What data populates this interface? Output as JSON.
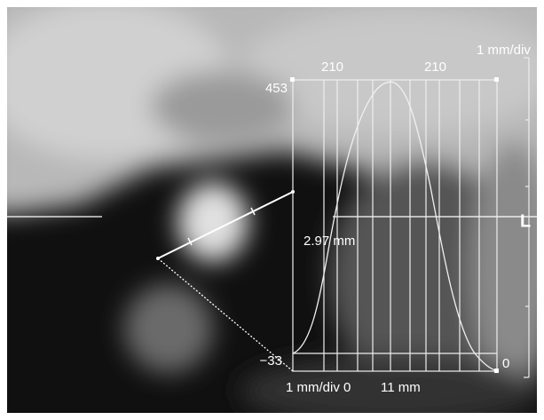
{
  "overlay": {
    "scale_top_right": "1 mm/div",
    "top_label_left": "210",
    "top_label_right": "210",
    "max_label": "453",
    "min_label": "−33",
    "right_zero": "0",
    "bottom_left": "1 mm/div 0",
    "bottom_length": "11 mm",
    "measurement": "2.97 mm",
    "orientation": "L"
  }
}
